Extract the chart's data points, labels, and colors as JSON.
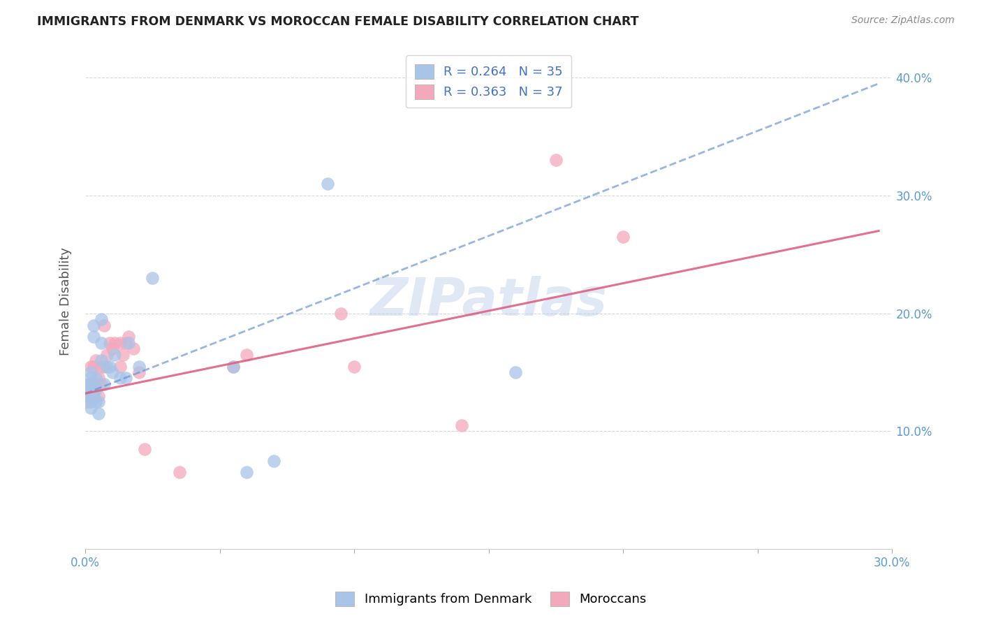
{
  "title": "IMMIGRANTS FROM DENMARK VS MOROCCAN FEMALE DISABILITY CORRELATION CHART",
  "source": "Source: ZipAtlas.com",
  "ylabel": "Female Disability",
  "legend_label_1": "Immigrants from Denmark",
  "legend_label_2": "Moroccans",
  "r1": "0.264",
  "n1": "35",
  "r2": "0.363",
  "n2": "37",
  "xlim": [
    0,
    0.3
  ],
  "ylim": [
    0,
    0.42
  ],
  "xticks": [
    0.0,
    0.05,
    0.1,
    0.15,
    0.2,
    0.25,
    0.3
  ],
  "yticks": [
    0.0,
    0.1,
    0.2,
    0.3,
    0.4
  ],
  "xtick_labels": [
    "0.0%",
    "",
    "",
    "",
    "",
    "",
    "30.0%"
  ],
  "ytick_labels_right": [
    "",
    "10.0%",
    "20.0%",
    "30.0%",
    "40.0%"
  ],
  "color_blue": "#a8c4e8",
  "color_pink": "#f4a8bc",
  "line_blue": "#6090d0",
  "line_pink": "#e06080",
  "watermark": "ZIPatlas",
  "blue_x": [
    0.001,
    0.001,
    0.001,
    0.002,
    0.002,
    0.002,
    0.002,
    0.002,
    0.003,
    0.003,
    0.003,
    0.003,
    0.004,
    0.004,
    0.004,
    0.005,
    0.005,
    0.006,
    0.006,
    0.006,
    0.007,
    0.008,
    0.009,
    0.01,
    0.011,
    0.013,
    0.015,
    0.016,
    0.02,
    0.025,
    0.055,
    0.06,
    0.07,
    0.09,
    0.16
  ],
  "blue_y": [
    0.13,
    0.135,
    0.14,
    0.12,
    0.125,
    0.14,
    0.145,
    0.15,
    0.13,
    0.135,
    0.18,
    0.19,
    0.125,
    0.135,
    0.145,
    0.115,
    0.125,
    0.16,
    0.175,
    0.195,
    0.14,
    0.155,
    0.155,
    0.15,
    0.165,
    0.145,
    0.145,
    0.175,
    0.155,
    0.23,
    0.155,
    0.065,
    0.075,
    0.31,
    0.15
  ],
  "pink_x": [
    0.001,
    0.001,
    0.001,
    0.002,
    0.002,
    0.002,
    0.003,
    0.003,
    0.003,
    0.004,
    0.004,
    0.005,
    0.005,
    0.006,
    0.006,
    0.007,
    0.007,
    0.008,
    0.009,
    0.01,
    0.011,
    0.013,
    0.013,
    0.014,
    0.015,
    0.016,
    0.018,
    0.02,
    0.022,
    0.035,
    0.055,
    0.06,
    0.095,
    0.1,
    0.14,
    0.175,
    0.2
  ],
  "pink_y": [
    0.125,
    0.13,
    0.135,
    0.135,
    0.14,
    0.155,
    0.13,
    0.14,
    0.155,
    0.14,
    0.16,
    0.13,
    0.145,
    0.14,
    0.155,
    0.155,
    0.19,
    0.165,
    0.175,
    0.17,
    0.175,
    0.155,
    0.175,
    0.165,
    0.175,
    0.18,
    0.17,
    0.15,
    0.085,
    0.065,
    0.155,
    0.165,
    0.2,
    0.155,
    0.105,
    0.33,
    0.265
  ],
  "blue_line_x0": 0.0,
  "blue_line_x1": 0.295,
  "blue_line_y0": 0.132,
  "blue_line_y1": 0.395,
  "pink_line_x0": 0.0,
  "pink_line_x1": 0.295,
  "pink_line_y0": 0.132,
  "pink_line_y1": 0.27
}
